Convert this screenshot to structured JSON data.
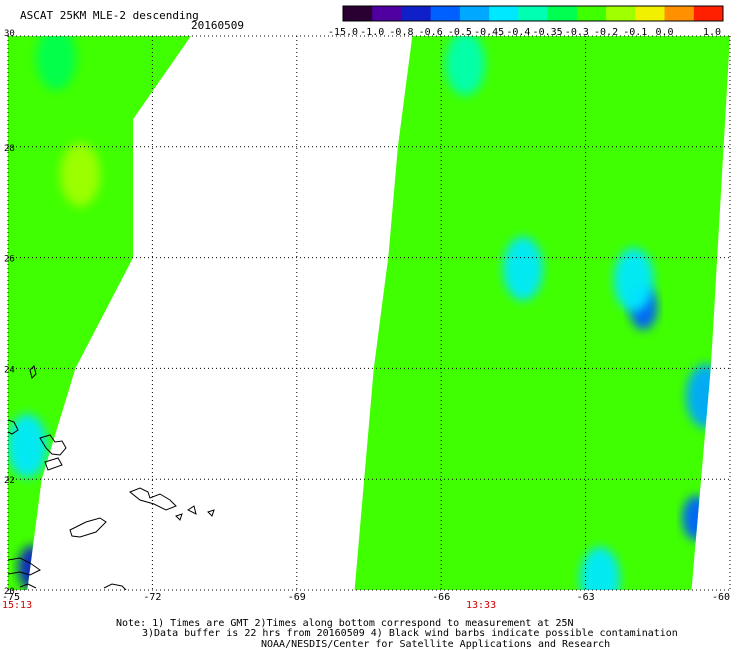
{
  "header": {
    "product_label": "ASCAT 25KM MLE-2 descending",
    "date_label": "20160509"
  },
  "colorbar": {
    "tick_labels": [
      "-15.0",
      "-1.0",
      "-0.8",
      "-0.6",
      "-0.5",
      "-0.45",
      "-0.4",
      "-0.35",
      "-0.3",
      "-0.2",
      "-0.1",
      "0.0",
      "1.0"
    ],
    "colors": [
      "#2a0033",
      "#5000a0",
      "#1020c8",
      "#0060ff",
      "#00a8ff",
      "#00e8ff",
      "#00ffb0",
      "#00ff50",
      "#40ff00",
      "#a0ff00",
      "#f0f000",
      "#ff9000",
      "#ff2000"
    ]
  },
  "time_labels": {
    "left_pass": "15:13",
    "right_pass": "13:33"
  },
  "notes": {
    "line1": "Note: 1) Times are GMT 2)Times along bottom correspond to measurement at 25N",
    "line2": "3)Data buffer is 22 hrs from 20160509 4) Black wind barbs indicate possible contamination",
    "line3": "NOAA/NESDIS/Center for Satellite Applications and Research"
  },
  "chart_data": {
    "type": "heatmap",
    "title": "ASCAT 25KM MLE-2 descending",
    "subtitle": "20160509",
    "x_ticks": [
      -75,
      -72,
      -69,
      -66,
      -63,
      -60
    ],
    "x_tick_labels": [
      "-75",
      "-72",
      "-69",
      "-66",
      "-63",
      "-60"
    ],
    "y_ticks": [
      20,
      22,
      24,
      26,
      28,
      30
    ],
    "y_tick_labels": [
      "20",
      "22",
      "24",
      "26",
      "28",
      "30"
    ],
    "xlim": [
      -75,
      -60
    ],
    "ylim": [
      20,
      30
    ],
    "grid": true,
    "colorbar_bins": [
      -15.0,
      -1.0,
      -0.8,
      -0.6,
      -0.5,
      -0.45,
      -0.4,
      -0.35,
      -0.3,
      -0.2,
      -0.1,
      0.0,
      1.0
    ],
    "swaths": [
      {
        "name": "left_pass",
        "lon_min_at_lat": [
          [
            30,
            -75
          ],
          [
            20,
            -75
          ]
        ],
        "lon_max_at_lat": [
          [
            30,
            -71.2
          ],
          [
            28.5,
            -72.4
          ],
          [
            26,
            -72.4
          ],
          [
            24,
            -73.6
          ],
          [
            22,
            -74.3
          ],
          [
            20,
            -74.6
          ]
        ],
        "dominant_value": -0.25
      },
      {
        "name": "right_pass",
        "lon_min_at_lat": [
          [
            30,
            -66.6
          ],
          [
            28,
            -66.9
          ],
          [
            26,
            -67.1
          ],
          [
            24,
            -67.4
          ],
          [
            22,
            -67.6
          ],
          [
            20,
            -67.8
          ]
        ],
        "lon_max_at_lat": [
          [
            30,
            -60
          ],
          [
            24,
            -60.4
          ],
          [
            22,
            -60.6
          ],
          [
            20,
            -60.8
          ]
        ],
        "dominant_value": -0.3
      }
    ],
    "features": [
      {
        "lon": -61.8,
        "lat": 25.1,
        "value": -0.6
      },
      {
        "lon": -62.0,
        "lat": 25.6,
        "value": -0.45
      },
      {
        "lon": -64.3,
        "lat": 25.8,
        "value": -0.45
      },
      {
        "lon": -74.6,
        "lat": 22.6,
        "value": -0.45
      },
      {
        "lon": -74.5,
        "lat": 20.4,
        "value": -0.8
      },
      {
        "lon": -60.7,
        "lat": 21.3,
        "value": -0.6
      },
      {
        "lon": -60.5,
        "lat": 23.5,
        "value": -0.5
      },
      {
        "lon": -62.7,
        "lat": 20.2,
        "value": -0.45
      },
      {
        "lon": -74.0,
        "lat": 29.6,
        "value": -0.35
      },
      {
        "lon": -65.5,
        "lat": 29.5,
        "value": -0.4
      },
      {
        "lon": -73.5,
        "lat": 27.5,
        "value": -0.2
      }
    ]
  }
}
